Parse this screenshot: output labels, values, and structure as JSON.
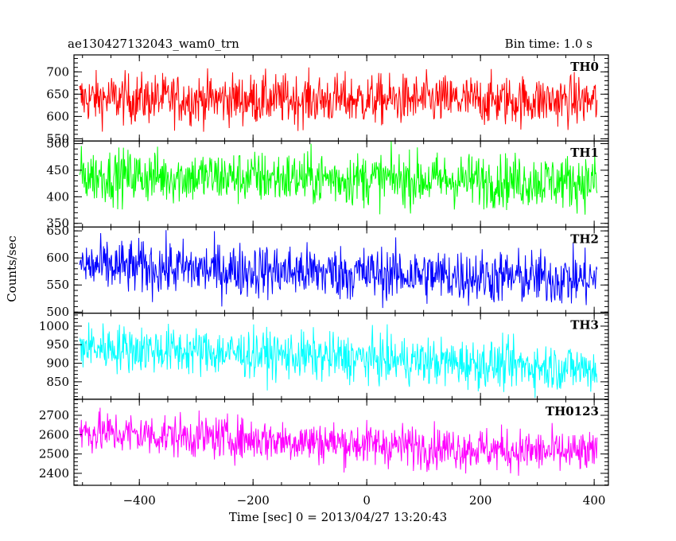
{
  "chart_data": {
    "type": "line",
    "title": "ae130427132043_wam0_trn",
    "subtitle": "Bin time: 1.0 s",
    "xlabel": "Time [sec] 0 = 2013/04/27 13:20:43",
    "ylabel": "Counts/sec",
    "xlim": [
      -515,
      425
    ],
    "x_ticks": [
      -400,
      -200,
      0,
      200,
      400
    ],
    "x_tick_labels": [
      "−400",
      "−200",
      "0",
      "200",
      "400"
    ],
    "x_data_range": [
      -505,
      405
    ],
    "bin_time": 1.0,
    "grid": false,
    "panels": [
      {
        "name": "TH0",
        "color": "#ff0000",
        "ylim": [
          545,
          738
        ],
        "ticks": [
          550,
          600,
          650,
          700
        ],
        "tick_labels": [
          "550",
          "600",
          "650",
          "700"
        ],
        "mean_start": 640,
        "mean_end": 635,
        "spread": 28,
        "min": 560,
        "max": 735
      },
      {
        "name": "TH1",
        "color": "#00ff00",
        "ylim": [
          343,
          505
        ],
        "ticks": [
          350,
          400,
          450,
          500
        ],
        "tick_labels": [
          "350",
          "400",
          "450",
          "500"
        ],
        "mean_start": 440,
        "mean_end": 428,
        "spread": 25,
        "min": 350,
        "max": 505
      },
      {
        "name": "TH2",
        "color": "#0000ff",
        "ylim": [
          498,
          657
        ],
        "ticks": [
          500,
          550,
          600,
          650
        ],
        "tick_labels": [
          "500",
          "550",
          "600",
          "650"
        ],
        "mean_start": 585,
        "mean_end": 560,
        "spread": 25,
        "min": 500,
        "max": 655
      },
      {
        "name": "TH3",
        "color": "#00ffff",
        "ylim": [
          803,
          1035
        ],
        "ticks": [
          850,
          900,
          950,
          1000
        ],
        "tick_labels": [
          "850",
          "900",
          "950",
          "1000"
        ],
        "mean_start": 945,
        "mean_end": 885,
        "spread": 32,
        "min": 805,
        "max": 1035
      },
      {
        "name": "TH0123",
        "color": "#ff00ff",
        "ylim": [
          2338,
          2783
        ],
        "ticks": [
          2400,
          2500,
          2600,
          2700
        ],
        "tick_labels": [
          "2400",
          "2500",
          "2600",
          "2700"
        ],
        "mean_start": 2615,
        "mean_end": 2500,
        "spread": 55,
        "min": 2340,
        "max": 2780
      }
    ]
  }
}
